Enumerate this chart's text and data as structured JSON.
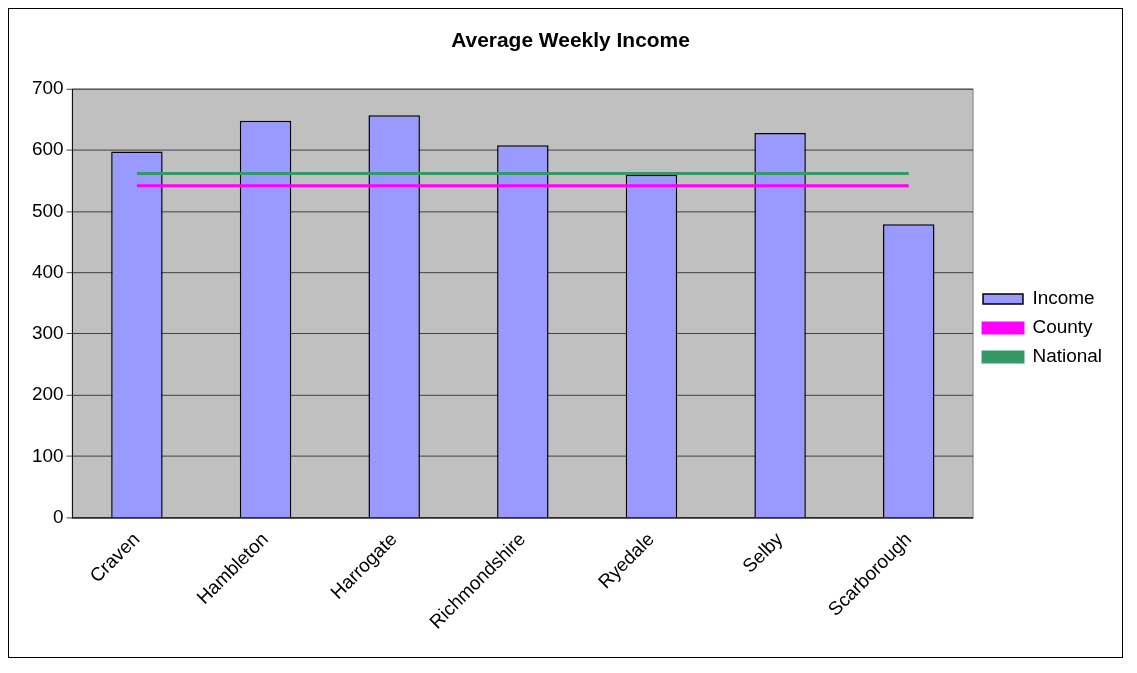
{
  "chart_data": {
    "type": "bar",
    "title": "Average Weekly Income",
    "categories": [
      "Craven",
      "Hambleton",
      "Harrogate",
      "Richmondshire",
      "Ryedale",
      "Selby",
      "Scarborough"
    ],
    "series": [
      {
        "name": "Income",
        "color": "#9999ff",
        "values": [
          598,
          648,
          657,
          608,
          560,
          628,
          479
        ]
      },
      {
        "name": "County",
        "type": "line",
        "color": "#ff00ff",
        "values": [
          542,
          542,
          542,
          542,
          542,
          542,
          542
        ]
      },
      {
        "name": "National",
        "type": "line",
        "color": "#339966",
        "values": [
          562,
          562,
          562,
          562,
          562,
          562,
          562
        ]
      }
    ],
    "ylim": [
      0,
      700
    ],
    "yticks": [
      0,
      100,
      200,
      300,
      400,
      500,
      600,
      700
    ],
    "grid": "y",
    "legend": "right"
  }
}
